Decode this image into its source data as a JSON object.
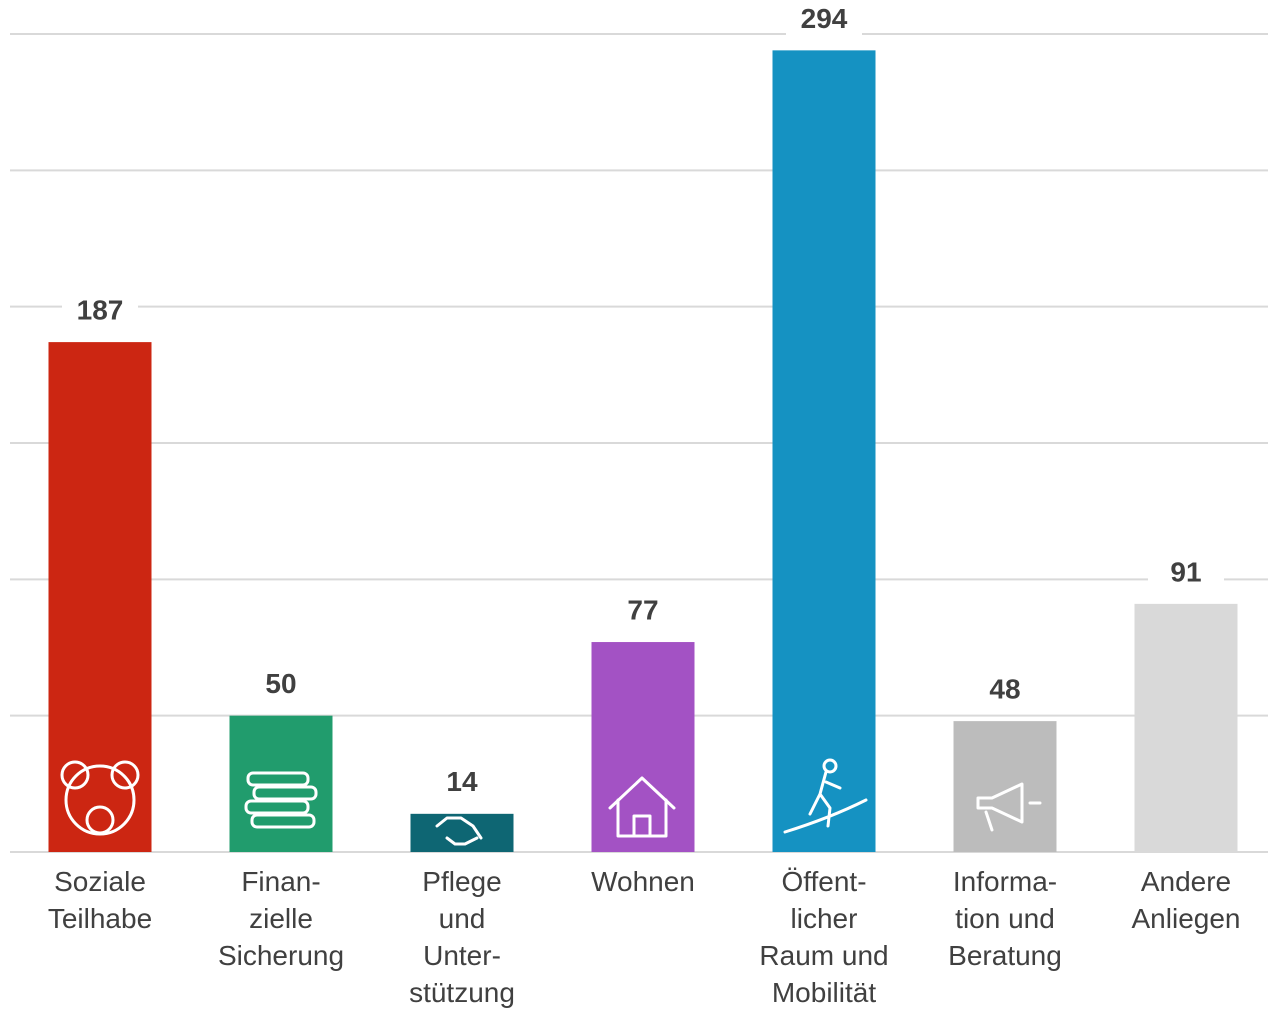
{
  "chart_data": {
    "type": "bar",
    "categories": [
      [
        "Soziale",
        "Teilhabe"
      ],
      [
        "Finan-",
        "zielle",
        "Sicherung"
      ],
      [
        "Pflege",
        "und",
        "Unter-",
        "stützung"
      ],
      [
        "Wohnen"
      ],
      [
        "Öffent-",
        "licher",
        "Raum und",
        "Mobilität"
      ],
      [
        "Informa-",
        "tion und",
        "Beratung"
      ],
      [
        "Andere",
        "Anliegen"
      ]
    ],
    "values": [
      187,
      50,
      14,
      77,
      294,
      48,
      91
    ],
    "colors": [
      "#cc2612",
      "#219c6d",
      "#0e6673",
      "#a352c4",
      "#1592c2",
      "#bcbcbc",
      "#d9d9d9"
    ],
    "ylim": [
      0,
      300
    ],
    "yticks": [
      0,
      50,
      100,
      150,
      200,
      250,
      300
    ],
    "grid": true
  }
}
